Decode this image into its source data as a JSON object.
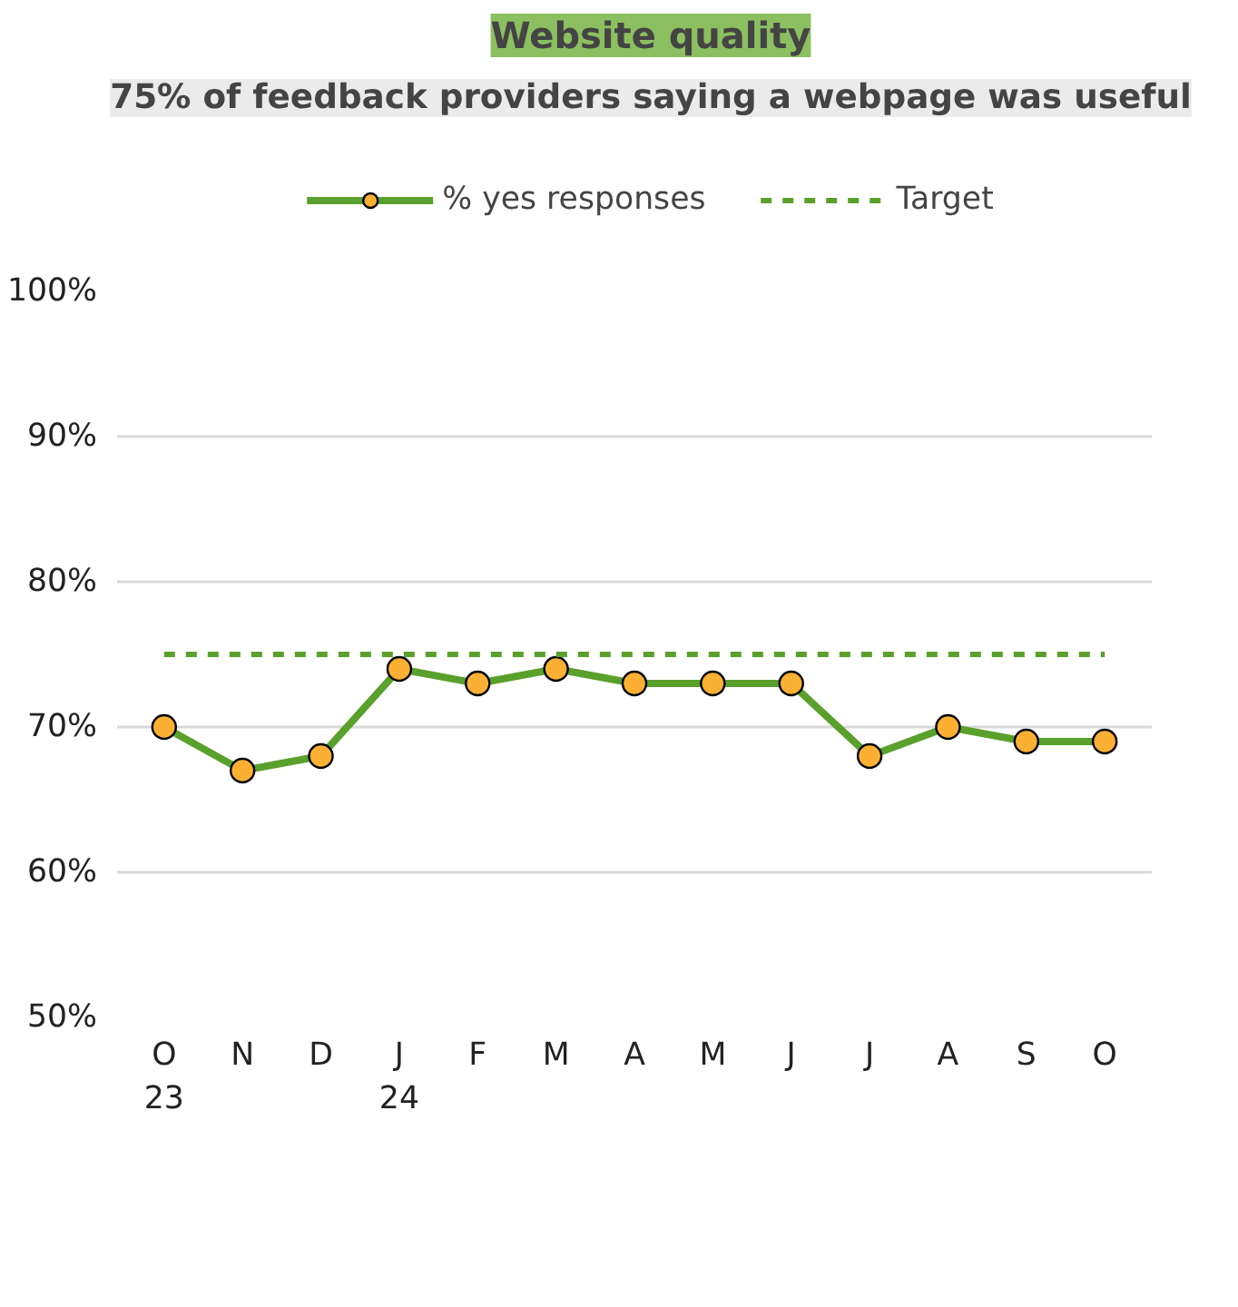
{
  "chart_data": {
    "type": "line",
    "title": "Website quality",
    "subtitle": "75% of feedback providers saying a webpage was useful",
    "categories": [
      "O\n23",
      "N",
      "D",
      "J\n24",
      "F",
      "M",
      "A",
      "M",
      "J",
      "J",
      "A",
      "S",
      "O"
    ],
    "series": [
      {
        "name": "% yes responses",
        "color": "#5aa02c",
        "marker": "circle",
        "line_style": "solid",
        "values": [
          70,
          67,
          68,
          74,
          73,
          74,
          73,
          73,
          73,
          68,
          70,
          69,
          69
        ]
      },
      {
        "name": "Target",
        "color": "#5aa02c",
        "marker": "none",
        "line_style": "dashed",
        "values": [
          75,
          75,
          75,
          75,
          75,
          75,
          75,
          75,
          75,
          75,
          75,
          75,
          75
        ]
      }
    ],
    "ylim": [
      50,
      100
    ],
    "yticks": [
      {
        "value": 50,
        "label": "50%"
      },
      {
        "value": 60,
        "label": "60%"
      },
      {
        "value": 70,
        "label": "70%"
      },
      {
        "value": 80,
        "label": "80%"
      },
      {
        "value": 90,
        "label": "90%"
      },
      {
        "value": 100,
        "label": "100%"
      }
    ],
    "grid": "y",
    "legend": "top"
  }
}
